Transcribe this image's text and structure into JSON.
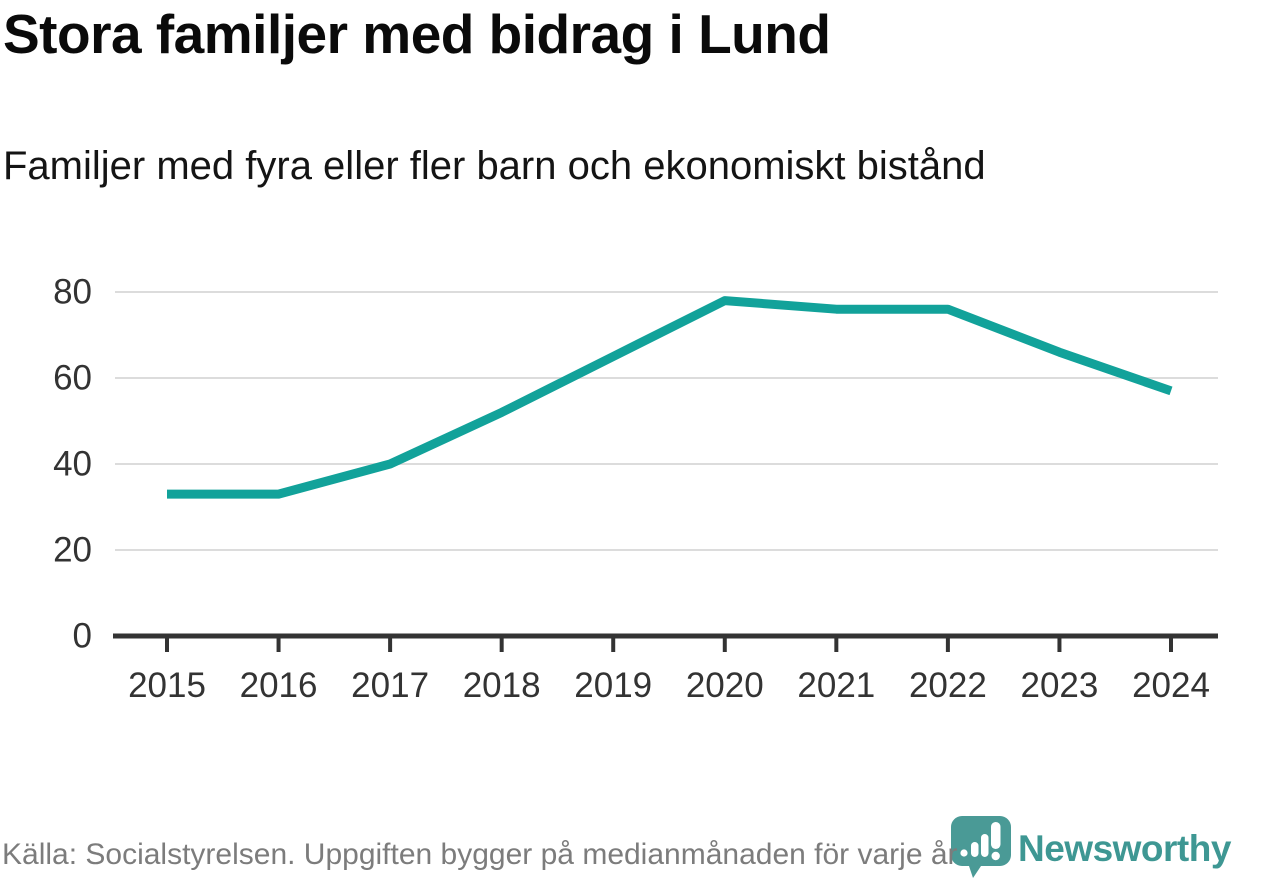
{
  "header": {
    "title": "Stora familjer med bidrag i Lund",
    "subtitle": "Familjer med fyra eller fler barn och ekonomiskt bistånd"
  },
  "chart_data": {
    "type": "line",
    "title": "Stora familjer med bidrag i Lund",
    "subtitle": "Familjer med fyra eller fler barn och ekonomiskt bistånd",
    "categories": [
      "2015",
      "2016",
      "2017",
      "2018",
      "2019",
      "2020",
      "2021",
      "2022",
      "2023",
      "2024"
    ],
    "values": [
      33,
      33,
      40,
      52,
      65,
      78,
      76,
      76,
      66,
      57
    ],
    "xlabel": "",
    "ylabel": "",
    "yticks": [
      0,
      20,
      40,
      60,
      80
    ],
    "ylim": [
      0,
      86
    ],
    "grid": true,
    "legend_position": "none",
    "line_color": "#12a29a"
  },
  "footer": {
    "source": "Källa: Socialstyrelsen. Uppgiften bygger på medianmånaden för varje år",
    "brand": "Newsworthy"
  },
  "colors": {
    "line": "#12a29a",
    "grid": "#dcdcdc",
    "axis": "#333333",
    "tick_label": "#333333",
    "source_text": "#7c7c7c",
    "brand_text": "#3e9793",
    "logo_fill": "#4a9a96"
  }
}
